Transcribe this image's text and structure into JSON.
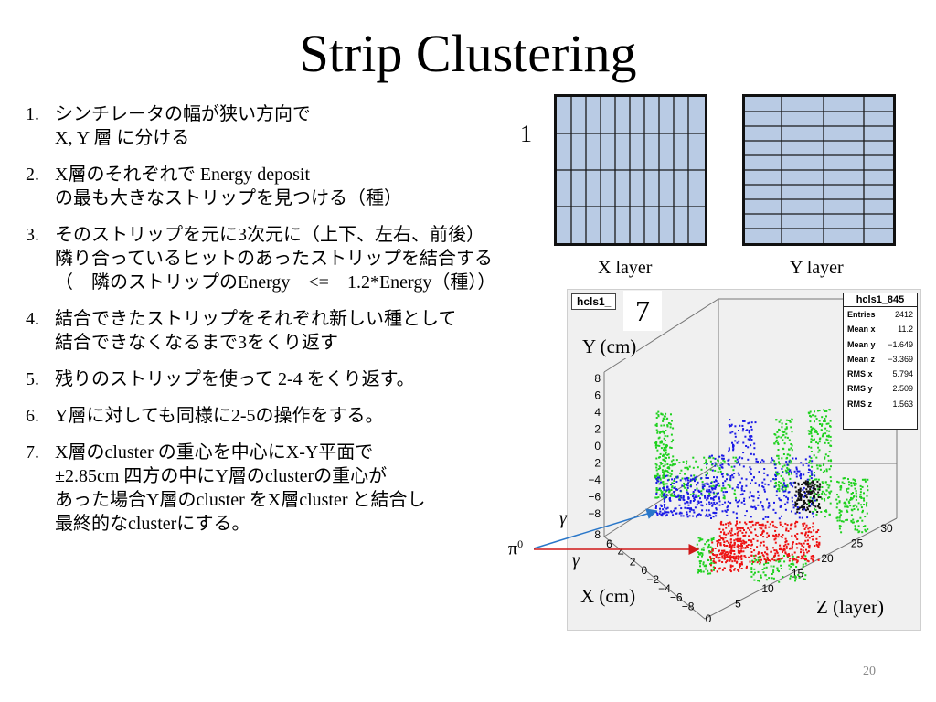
{
  "slide": {
    "title": "Strip Clustering",
    "page_number": "20"
  },
  "steps": [
    {
      "num": "1.",
      "lines": [
        "シンチレータの幅が狭い方向で",
        "X, Y 層 に分ける"
      ]
    },
    {
      "num": "2.",
      "lines": [
        "X層のそれぞれで Energy deposit",
        "の最も大きなストリップを見つける（種）"
      ]
    },
    {
      "num": "3.",
      "lines": [
        "そのストリップを元に3次元に（上下、左右、前後）",
        "隣り合っているヒットのあったストリップを結合する",
        "（　隣のストリップのEnergy　<=　1.2*Energy（種））"
      ]
    },
    {
      "num": "4.",
      "lines": [
        "結合できたストリップをそれぞれ新しい種として",
        "結合できなくなるまで3をくり返す"
      ]
    },
    {
      "num": "5.",
      "lines": [
        "残りのストリップを使って 2-4 をくり返す。"
      ]
    },
    {
      "num": "6.",
      "lines": [
        "Y層に対しても同様に2-5の操作をする。"
      ]
    },
    {
      "num": "7.",
      "lines": [
        "X層のcluster の重心を中心にX-Y平面で",
        "±2.85cm 四方の中にY層のclusterの重心が",
        "あった場合Y層のcluster をX層cluster と結合し",
        "最終的なclusterにする。"
      ]
    }
  ],
  "layers": {
    "number_label": "1",
    "x_label": "X layer",
    "y_label": "Y layer"
  },
  "plot": {
    "histogram_name": "hcls1_",
    "overlay_number": "7",
    "y_axis_title": "Y (cm)",
    "x_axis_title": "X (cm)",
    "z_axis_title": "Z (layer)",
    "y_ticks": [
      "8",
      "6",
      "4",
      "2",
      "0",
      "−2",
      "−4",
      "−6",
      "−8"
    ],
    "x_ticks": [
      "8",
      "6",
      "4",
      "2",
      "0",
      "−2",
      "−4",
      "−6",
      "−8"
    ],
    "z_ticks": [
      "0",
      "5",
      "10",
      "15",
      "20",
      "25",
      "30"
    ],
    "stats": {
      "title": "hcls1_845",
      "rows": [
        {
          "label": "Entries",
          "value": "2412"
        },
        {
          "label": "Mean x",
          "value": "11.2"
        },
        {
          "label": "Mean y",
          "value": "−1.649"
        },
        {
          "label": "Mean z",
          "value": "−3.369"
        },
        {
          "label": "RMS x",
          "value": "5.794"
        },
        {
          "label": "RMS y",
          "value": "2.509"
        },
        {
          "label": "RMS z",
          "value": "1.563"
        }
      ]
    },
    "gamma_label": "γ",
    "pi0_label": "π",
    "pi0_superscript": "0",
    "colors": {
      "green": "#1fd11f",
      "blue": "#1a1ae6",
      "red": "#ee1111",
      "black": "#111111"
    }
  }
}
